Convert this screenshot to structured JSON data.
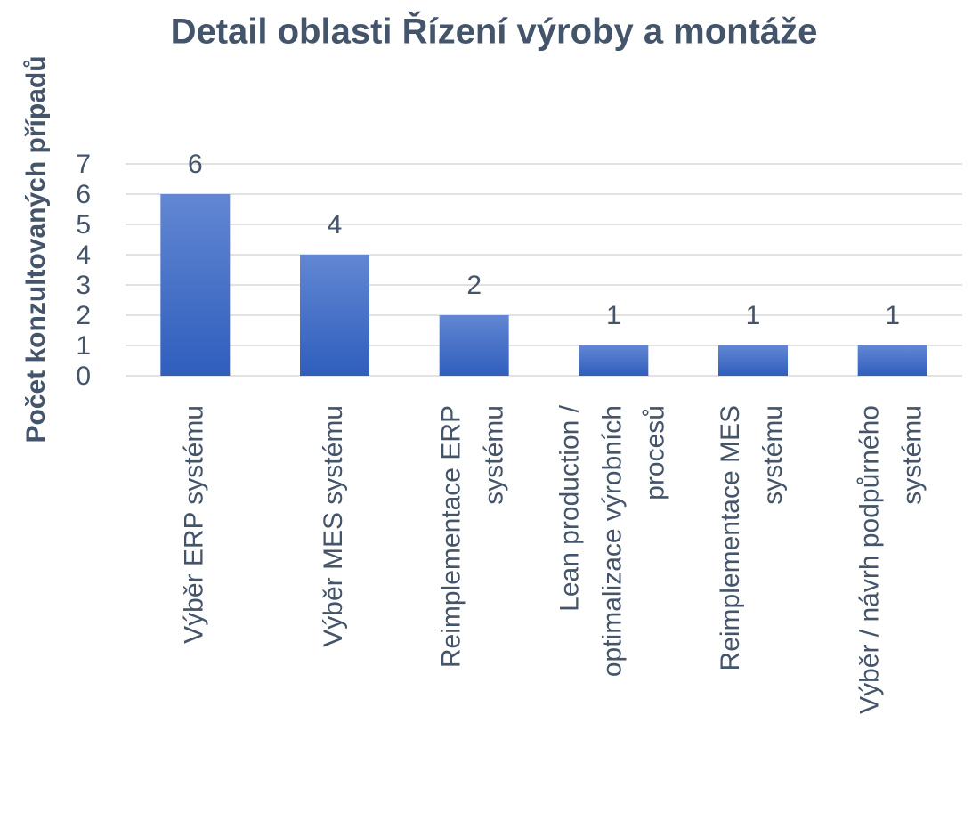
{
  "chart_data": {
    "type": "bar",
    "title": "Detail oblasti Řízení výroby a montáže",
    "y_label": "Počet konzultovaných případů",
    "categories": [
      "Výběr ERP systému",
      "Výběr MES systému",
      "Reimplementace ERP systému",
      "Lean production / optimalizace výrobních procesů",
      "Reimplementace MES systému",
      "Výběr / návrh podpůrného systému"
    ],
    "values": [
      6,
      4,
      2,
      1,
      1,
      1
    ],
    "color": "#4472c4",
    "ylim": [
      0,
      7
    ],
    "yticks": [
      0,
      1,
      2,
      3,
      4,
      5,
      6,
      7
    ],
    "grid": true
  }
}
